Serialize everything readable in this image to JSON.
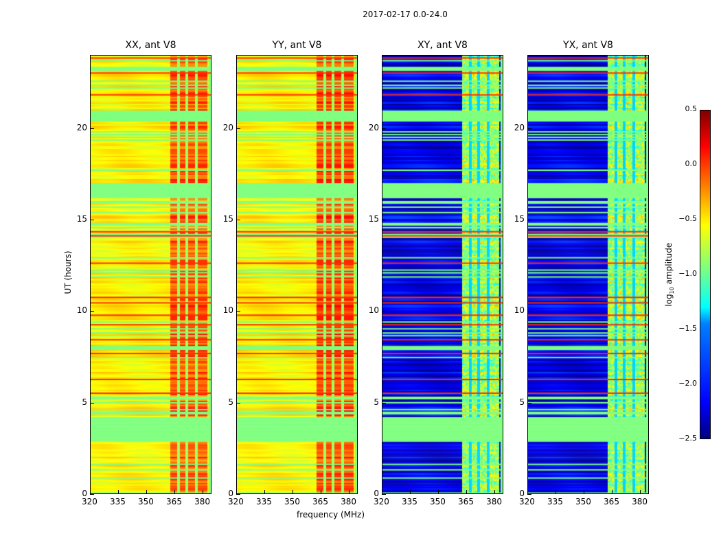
{
  "suptitle": "2017-02-17 0.0-24.0",
  "chart_data": {
    "type": "heatmap",
    "title": "2017-02-17 0.0-24.0",
    "xlabel": "frequency (MHz)",
    "ylabel": "UT (hours)",
    "xlim": [
      320,
      384
    ],
    "ylim": [
      0,
      24
    ],
    "xticks": [
      "320",
      "335",
      "350",
      "365",
      "380"
    ],
    "yticks": [
      "0",
      "5",
      "10",
      "15",
      "20"
    ],
    "panels": [
      {
        "title": "XX, ant V8",
        "base_level": -0.6,
        "band_level": -0.15
      },
      {
        "title": "YY, ant V8",
        "base_level": -0.6,
        "band_level": -0.1
      },
      {
        "title": "XY, ant V8",
        "base_level": -2.2,
        "band_level": -0.9
      },
      {
        "title": "YX, ant V8",
        "base_level": -2.2,
        "band_level": -0.9
      }
    ],
    "high_band_MHz": [
      362,
      382
    ],
    "flagged_UT_ranges": [
      [
        2.8,
        4.2
      ],
      [
        16.2,
        17.0
      ],
      [
        20.4,
        21.0
      ]
    ],
    "flag_level": -1.0,
    "colorbar": {
      "label": "log10 amplitude",
      "colormap": "jet",
      "range": [
        -2.5,
        0.5
      ],
      "ticks": [
        "0.5",
        "0.0",
        "−0.5",
        "−1.0",
        "−1.5",
        "−2.0",
        "−2.5"
      ]
    }
  },
  "colorbar_label_main": "log",
  "colorbar_label_sub": "10",
  "colorbar_label_rest": " amplitude"
}
